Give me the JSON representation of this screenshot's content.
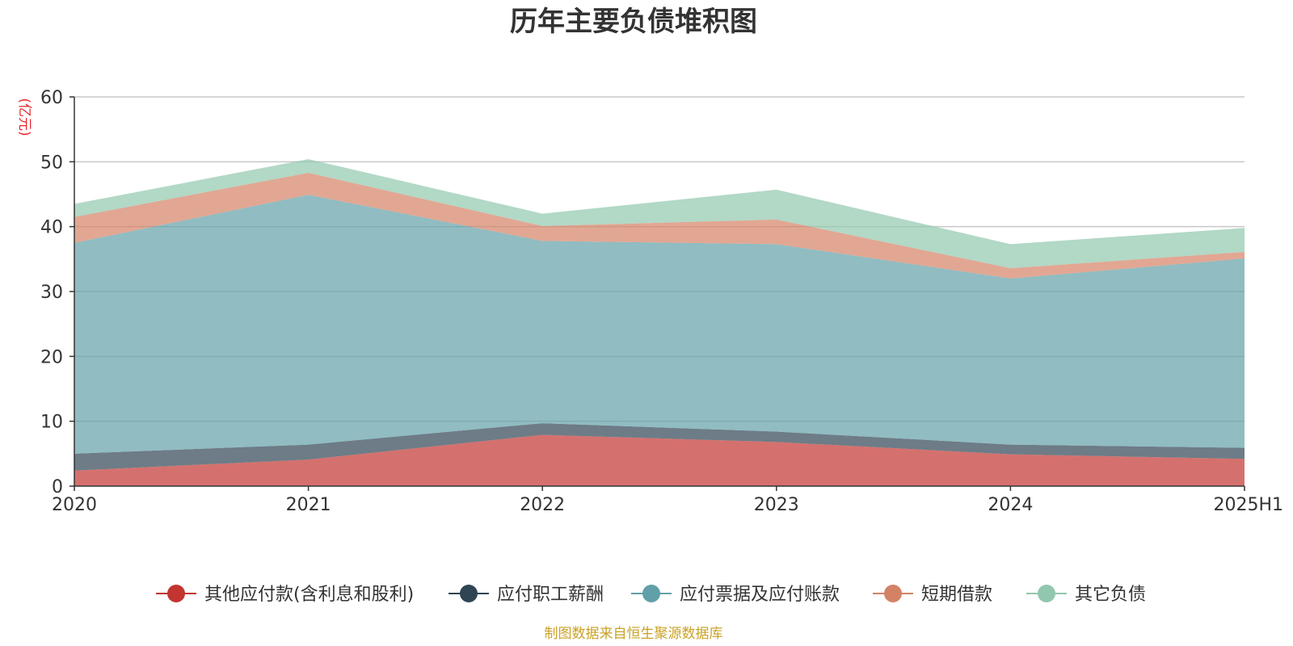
{
  "chart_data": {
    "type": "area",
    "stacked": true,
    "title": "历年主要负债堆积图",
    "ylabel": "(亿元)",
    "xlabel": "",
    "categories": [
      "2020",
      "2021",
      "2022",
      "2023",
      "2024",
      "2025H1"
    ],
    "ylim": [
      0,
      60
    ],
    "yticks": [
      0,
      10,
      20,
      30,
      40,
      50,
      60
    ],
    "grid": true,
    "legend_position": "bottom",
    "series": [
      {
        "name": "其他应付款(含利息和股利)",
        "color": "#c23531",
        "values": [
          2.4,
          4.1,
          7.9,
          6.8,
          4.9,
          4.2
        ]
      },
      {
        "name": "应付职工薪酬",
        "color": "#2f4554",
        "values": [
          2.6,
          2.3,
          1.8,
          1.6,
          1.5,
          1.7
        ]
      },
      {
        "name": "应付票据及应付账款",
        "color": "#61a0a8",
        "values": [
          32.5,
          38.5,
          28.1,
          28.9,
          25.6,
          29.2
        ]
      },
      {
        "name": "短期借款",
        "color": "#d48265",
        "values": [
          4.0,
          3.4,
          2.3,
          3.8,
          1.6,
          1.0
        ]
      },
      {
        "name": "其它负债",
        "color": "#91c7ae",
        "values": [
          2.0,
          2.1,
          1.9,
          4.6,
          3.7,
          3.7
        ]
      }
    ],
    "source_note": "制图数据来自恒生聚源数据库"
  }
}
